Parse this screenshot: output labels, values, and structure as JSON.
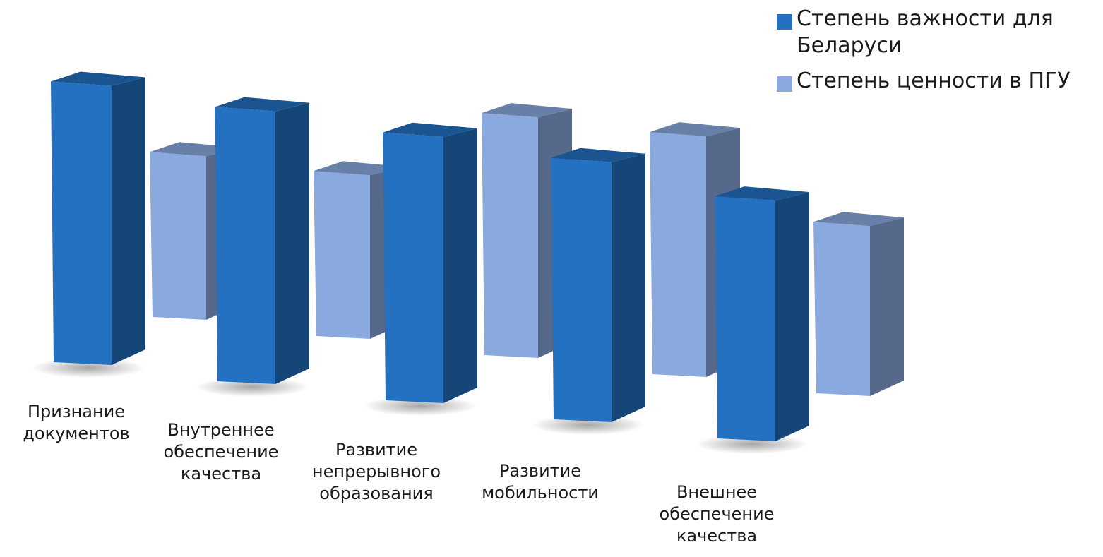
{
  "chart_data": {
    "type": "bar",
    "title": "",
    "xlabel": "",
    "ylabel": "",
    "grid": false,
    "legend_position": "top-right",
    "categories": [
      "Признание документов",
      "Внутреннее обеспечение качества",
      "Развитие непрерывного образования",
      "Развитие мобильности",
      "Внешнее обеспечение качества"
    ],
    "series": [
      {
        "name": "Степень важности для Беларуси",
        "color": "#2471c1",
        "values": [
          4.5,
          4.4,
          4.3,
          4.2,
          3.9
        ]
      },
      {
        "name": "Степень ценности в ПГУ",
        "color": "#8aa9df",
        "values": [
          2.7,
          2.7,
          3.9,
          3.9,
          2.8
        ]
      }
    ],
    "ylim": [
      0,
      5
    ]
  }
}
